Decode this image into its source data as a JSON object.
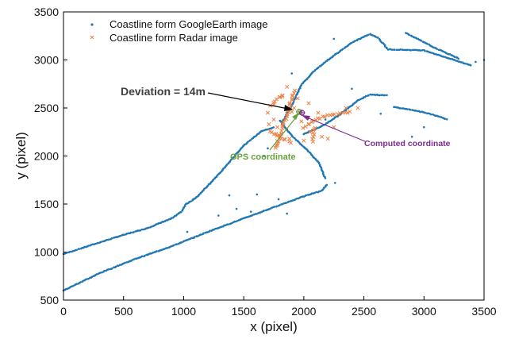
{
  "chart_data": {
    "type": "scatter",
    "xlabel": "x (pixel)",
    "ylabel": "y (pixel)",
    "xlim": [
      0,
      3500
    ],
    "ylim": [
      500,
      3500
    ],
    "xticks": [
      0,
      500,
      1000,
      1500,
      2000,
      2500,
      3000,
      3500
    ],
    "yticks": [
      500,
      1000,
      1500,
      2000,
      2500,
      3000,
      3500
    ],
    "grid": false,
    "legend_position": "top-left",
    "series": [
      {
        "name": "Coastline form GoogleEarth image",
        "marker": "dot",
        "color": "#1f77b4",
        "segments": [
          [
            [
              0,
              980
            ],
            [
              200,
              1060
            ],
            [
              450,
              1160
            ],
            [
              700,
              1250
            ],
            [
              900,
              1350
            ],
            [
              980,
              1420
            ],
            [
              1020,
              1500
            ],
            [
              1100,
              1560
            ],
            [
              1300,
              1820
            ],
            [
              1500,
              2110
            ],
            [
              1650,
              2260
            ],
            [
              1760,
              2300
            ]
          ],
          [
            [
              0,
              600
            ],
            [
              300,
              780
            ],
            [
              600,
              930
            ],
            [
              900,
              1060
            ],
            [
              1200,
              1210
            ],
            [
              1500,
              1350
            ],
            [
              1800,
              1490
            ],
            [
              2000,
              1580
            ],
            [
              2150,
              1640
            ],
            [
              2200,
              1710
            ]
          ],
          [
            [
              1800,
              2370
            ],
            [
              1900,
              2210
            ],
            [
              1980,
              2120
            ],
            [
              2060,
              2020
            ],
            [
              2130,
              1920
            ],
            [
              2180,
              1760
            ]
          ],
          [
            [
              1820,
              2350
            ],
            [
              1900,
              2530
            ],
            [
              1980,
              2740
            ],
            [
              2080,
              2880
            ],
            [
              2200,
              3000
            ],
            [
              2400,
              3180
            ],
            [
              2550,
              3270
            ],
            [
              2620,
              3230
            ],
            [
              2700,
              3110
            ]
          ],
          [
            [
              2700,
              3110
            ],
            [
              3000,
              3100
            ],
            [
              3200,
              3020
            ],
            [
              3400,
              2940
            ]
          ],
          [
            [
              2000,
              2230
            ],
            [
              2150,
              2310
            ],
            [
              2300,
              2430
            ],
            [
              2450,
              2580
            ],
            [
              2550,
              2640
            ],
            [
              2700,
              2630
            ]
          ],
          [
            [
              2750,
              2510
            ],
            [
              2900,
              2480
            ],
            [
              3050,
              2440
            ],
            [
              3200,
              2380
            ]
          ],
          [
            [
              2850,
              3280
            ],
            [
              3100,
              3120
            ],
            [
              3300,
              3010
            ]
          ]
        ],
        "scattered_points": [
          [
            1670,
            2000
          ],
          [
            1700,
            2080
          ],
          [
            1380,
            1590
          ],
          [
            1440,
            1450
          ],
          [
            1560,
            1420
          ],
          [
            1290,
            1380
          ],
          [
            1080,
            1550
          ],
          [
            1030,
            1210
          ],
          [
            1610,
            1600
          ],
          [
            1790,
            1550
          ],
          [
            1860,
            1400
          ],
          [
            2260,
            1720
          ],
          [
            2400,
            2700
          ],
          [
            3000,
            2300
          ],
          [
            2900,
            2200
          ],
          [
            3430,
            2980
          ],
          [
            3500,
            3000
          ],
          [
            2640,
            2440
          ],
          [
            1900,
            2860
          ],
          [
            2250,
            3220
          ],
          [
            1970,
            2450
          ],
          [
            2180,
            2380
          ]
        ]
      },
      {
        "name": "Coastline form Radar image",
        "marker": "x",
        "color": "#ef7f43",
        "segments": [
          [
            [
              1770,
              2080
            ],
            [
              1800,
              2220
            ],
            [
              1830,
              2330
            ],
            [
              1860,
              2430
            ],
            [
              1890,
              2560
            ],
            [
              1930,
              2700
            ]
          ],
          [
            [
              1720,
              2260
            ],
            [
              1780,
              2210
            ],
            [
              1850,
              2160
            ],
            [
              1920,
              2130
            ]
          ],
          [
            [
              2000,
              2300
            ],
            [
              2100,
              2380
            ],
            [
              2200,
              2420
            ],
            [
              2300,
              2440
            ],
            [
              2400,
              2460
            ]
          ],
          [
            [
              2090,
              2300
            ],
            [
              2080,
              2200
            ],
            [
              2080,
              2130
            ]
          ],
          [
            [
              1730,
              2520
            ],
            [
              1790,
              2610
            ],
            [
              1850,
              2650
            ]
          ]
        ],
        "scattered_points": [
          [
            1700,
            2450
          ],
          [
            1750,
            2380
          ],
          [
            1820,
            2620
          ],
          [
            1920,
            2500
          ],
          [
            2040,
            2550
          ],
          [
            1980,
            2360
          ],
          [
            2150,
            2200
          ],
          [
            2200,
            2180
          ],
          [
            2000,
            2160
          ],
          [
            2050,
            2250
          ],
          [
            1860,
            2720
          ],
          [
            1780,
            2300
          ],
          [
            1710,
            2330
          ],
          [
            2250,
            2300
          ],
          [
            2120,
            2450
          ],
          [
            2350,
            2500
          ],
          [
            2450,
            2500
          ],
          [
            1880,
            2180
          ],
          [
            1950,
            2600
          ],
          [
            1790,
            2150
          ],
          [
            1900,
            2460
          ]
        ]
      }
    ],
    "markers": [
      {
        "label": "GPS coordinate",
        "x": 1960,
        "y": 2460,
        "color": "#69a03a"
      },
      {
        "label": "Computed coordinate",
        "x": 1985,
        "y": 2450,
        "color": "#7b2d8e"
      }
    ],
    "annotations": [
      {
        "text": "Deviation = 14m",
        "color": "#404040",
        "arrow_to": [
          1940,
          2460
        ]
      },
      {
        "text": "GPS coordinate",
        "color": "#69a03a",
        "arrow_to": [
          1960,
          2460
        ]
      },
      {
        "text": "Computed coordinate",
        "color": "#7b2d8e",
        "arrow_to": [
          1985,
          2450
        ]
      }
    ]
  }
}
